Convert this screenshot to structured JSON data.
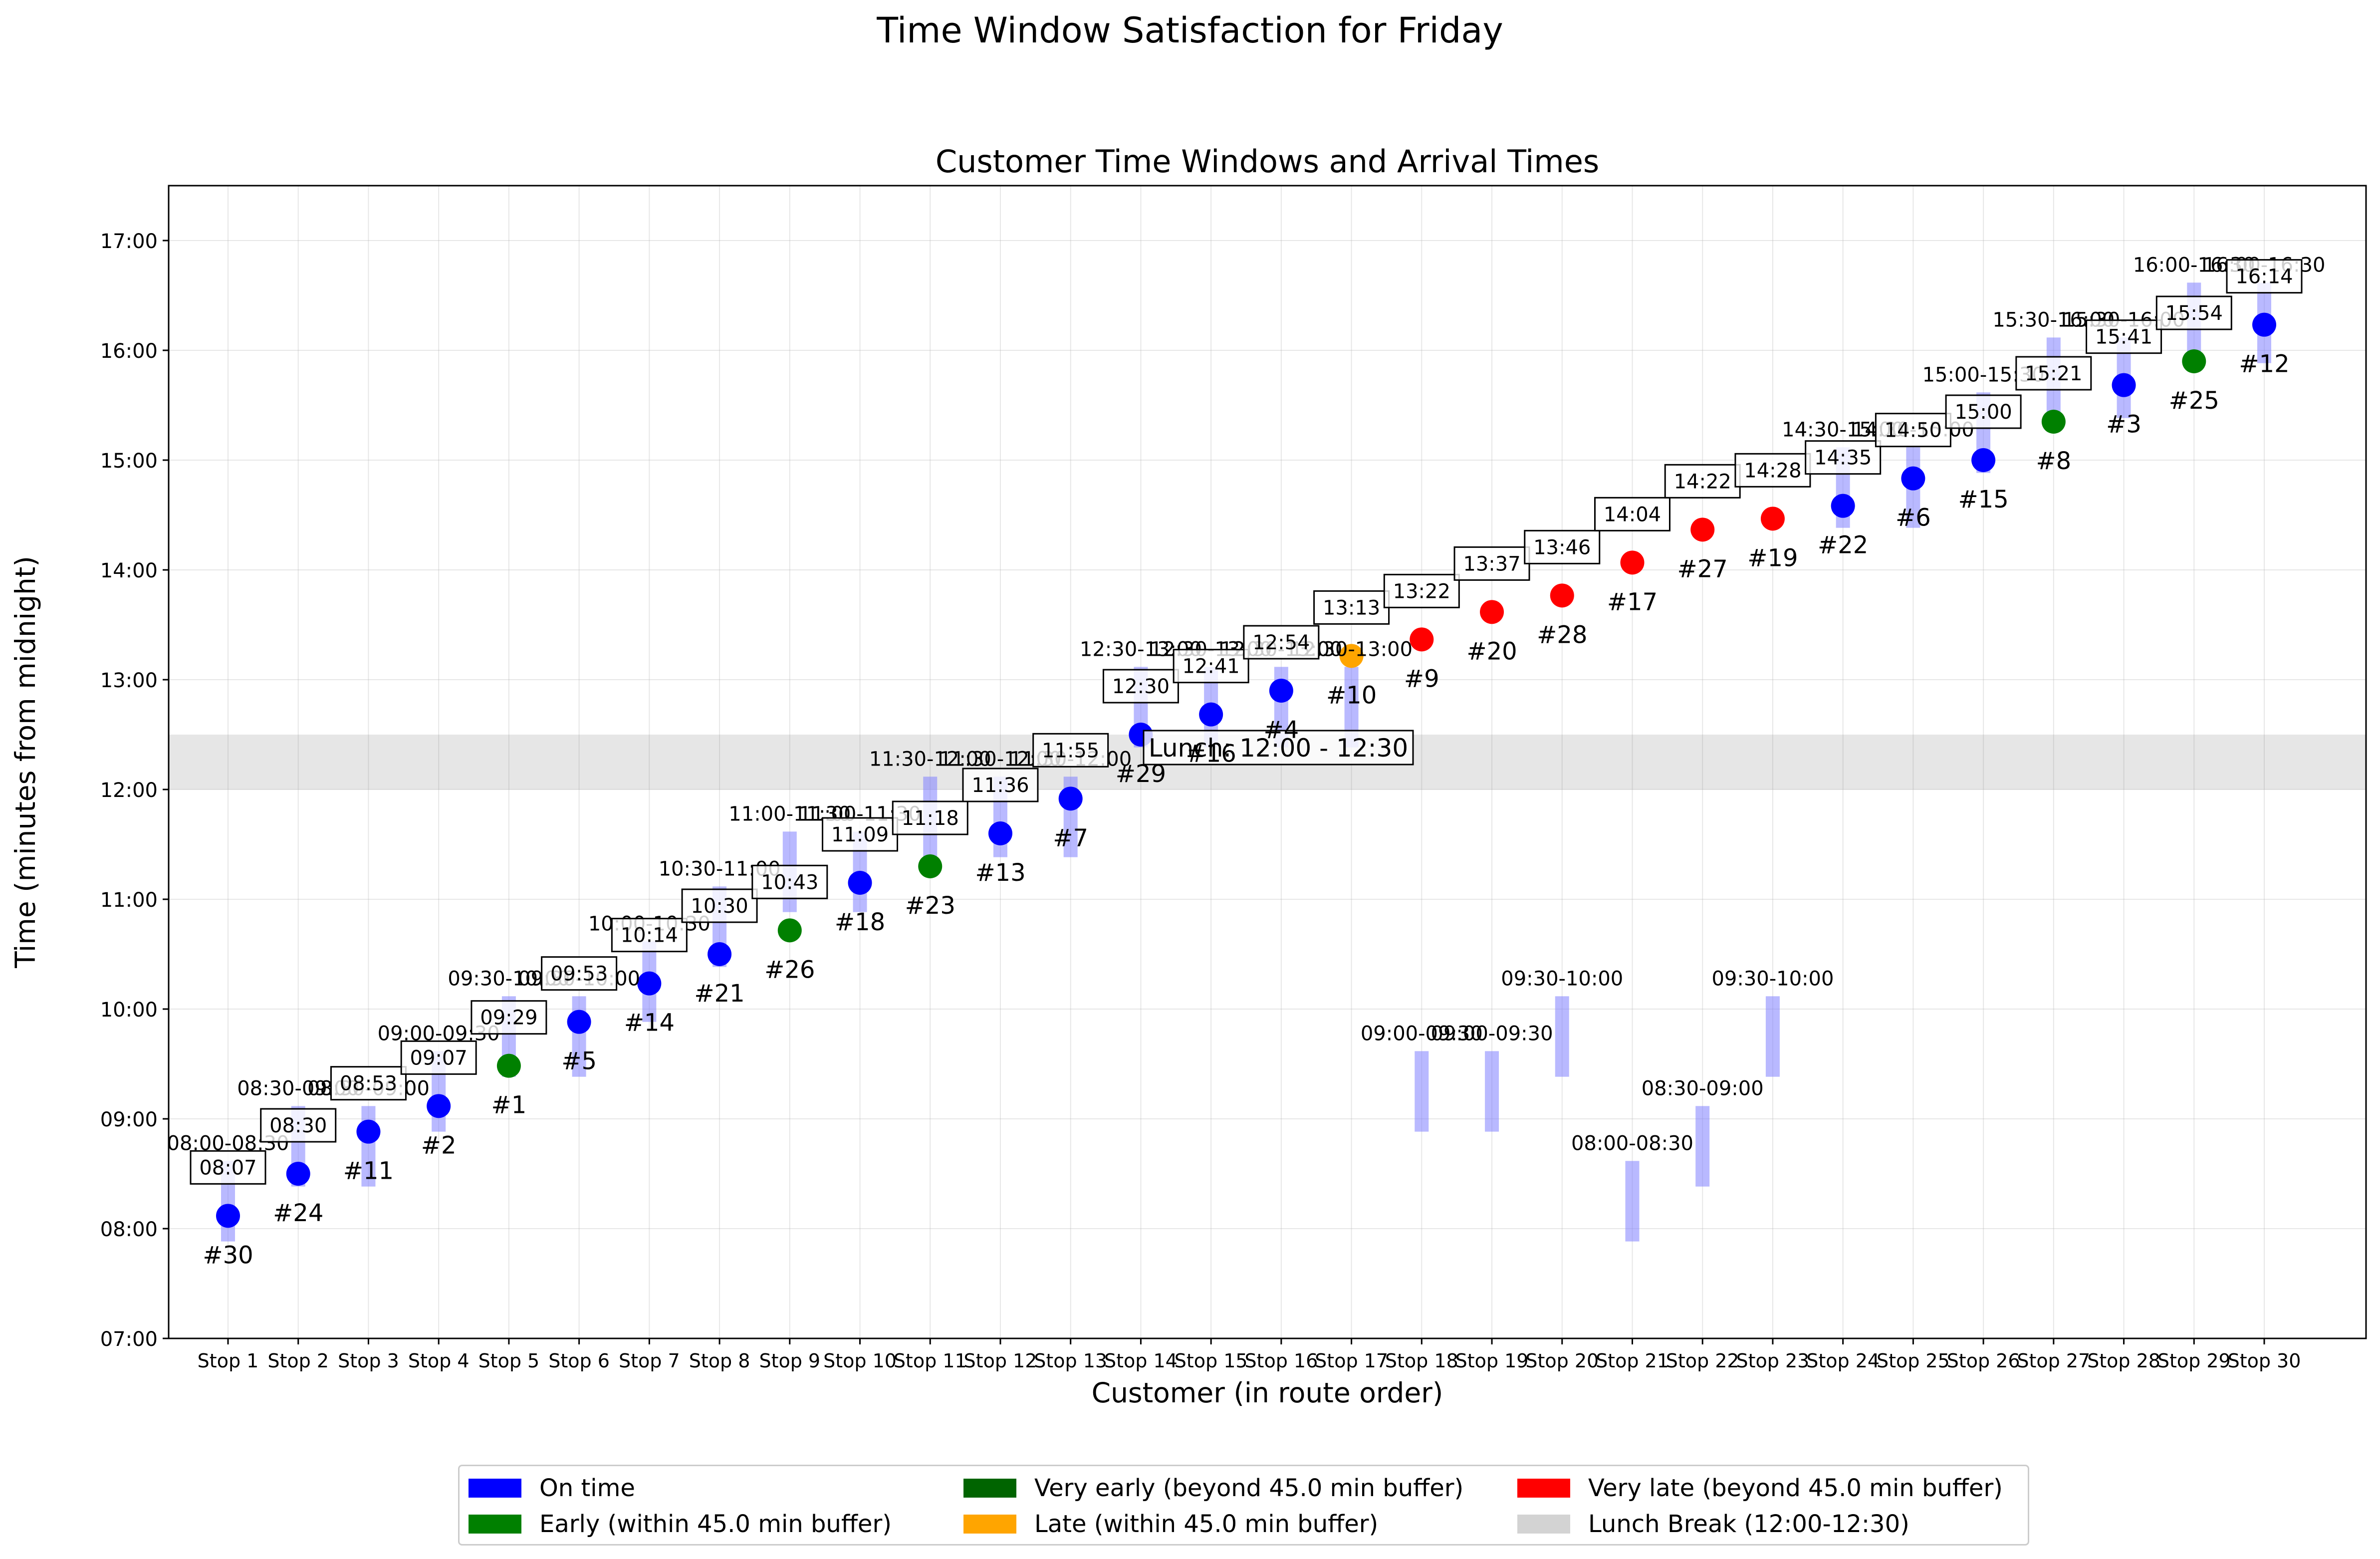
{
  "suptitle": "Time Window Satisfaction for Friday",
  "chart_data": {
    "type": "scatter",
    "title": "Customer Time Windows and Arrival Times",
    "xlabel": "Customer (in route order)",
    "ylabel": "Time (minutes from midnight)",
    "ylim": [
      "07:00",
      "17:30"
    ],
    "yticks": [
      "07:00",
      "08:00",
      "09:00",
      "10:00",
      "11:00",
      "12:00",
      "13:00",
      "14:00",
      "15:00",
      "16:00",
      "17:00"
    ],
    "grid": true,
    "lunch_break": {
      "start": "12:00",
      "end": "12:30",
      "label": "Lunch: 12:00 - 12:30"
    },
    "colors": {
      "on_time": "#0000ff",
      "early": "#008000",
      "very_early": "#006400",
      "late": "#ffa500",
      "very_late": "#ff0000",
      "lunch": "#d3d3d3",
      "window": "#8080ff"
    },
    "stops": [
      {
        "stop": "Stop 1",
        "customer": "#30",
        "window": "08:00-08:30",
        "arrival": "08:07",
        "status": "on_time"
      },
      {
        "stop": "Stop 2",
        "customer": "#24",
        "window": "08:30-09:00",
        "arrival": "08:30",
        "status": "on_time"
      },
      {
        "stop": "Stop 3",
        "customer": "#11",
        "window": "08:30-09:00",
        "arrival": "08:53",
        "status": "on_time"
      },
      {
        "stop": "Stop 4",
        "customer": "#2",
        "window": "09:00-09:30",
        "arrival": "09:07",
        "status": "on_time"
      },
      {
        "stop": "Stop 5",
        "customer": "#1",
        "window": "09:30-10:00",
        "arrival": "09:29",
        "status": "early"
      },
      {
        "stop": "Stop 6",
        "customer": "#5",
        "window": "09:30-10:00",
        "arrival": "09:53",
        "status": "on_time"
      },
      {
        "stop": "Stop 7",
        "customer": "#14",
        "window": "10:00-10:30",
        "arrival": "10:14",
        "status": "on_time"
      },
      {
        "stop": "Stop 8",
        "customer": "#21",
        "window": "10:30-11:00",
        "arrival": "10:30",
        "status": "on_time"
      },
      {
        "stop": "Stop 9",
        "customer": "#26",
        "window": "11:00-11:30",
        "arrival": "10:43",
        "status": "early"
      },
      {
        "stop": "Stop 10",
        "customer": "#18",
        "window": "11:00-11:30",
        "arrival": "11:09",
        "status": "on_time"
      },
      {
        "stop": "Stop 11",
        "customer": "#23",
        "window": "11:30-12:00",
        "arrival": "11:18",
        "status": "early"
      },
      {
        "stop": "Stop 12",
        "customer": "#13",
        "window": "11:30-12:00",
        "arrival": "11:36",
        "status": "on_time"
      },
      {
        "stop": "Stop 13",
        "customer": "#7",
        "window": "11:30-12:00",
        "arrival": "11:55",
        "status": "on_time"
      },
      {
        "stop": "Stop 14",
        "customer": "#29",
        "window": "12:30-13:00",
        "arrival": "12:30",
        "status": "on_time"
      },
      {
        "stop": "Stop 15",
        "customer": "#16",
        "window": "12:30-13:00",
        "arrival": "12:41",
        "status": "on_time"
      },
      {
        "stop": "Stop 16",
        "customer": "#4",
        "window": "12:30-13:00",
        "arrival": "12:54",
        "status": "on_time"
      },
      {
        "stop": "Stop 17",
        "customer": "#10",
        "window": "12:30-13:00",
        "arrival": "13:13",
        "status": "late"
      },
      {
        "stop": "Stop 18",
        "customer": "#9",
        "window": "09:00-09:30",
        "arrival": "13:22",
        "status": "very_late"
      },
      {
        "stop": "Stop 19",
        "customer": "#20",
        "window": "09:00-09:30",
        "arrival": "13:37",
        "status": "very_late"
      },
      {
        "stop": "Stop 20",
        "customer": "#28",
        "window": "09:30-10:00",
        "arrival": "13:46",
        "status": "very_late"
      },
      {
        "stop": "Stop 21",
        "customer": "#17",
        "window": "08:00-08:30",
        "arrival": "14:04",
        "status": "very_late"
      },
      {
        "stop": "Stop 22",
        "customer": "#27",
        "window": "08:30-09:00",
        "arrival": "14:22",
        "status": "very_late"
      },
      {
        "stop": "Stop 23",
        "customer": "#19",
        "window": "09:30-10:00",
        "arrival": "14:28",
        "status": "very_late"
      },
      {
        "stop": "Stop 24",
        "customer": "#22",
        "window": "14:30-15:00",
        "arrival": "14:35",
        "status": "on_time"
      },
      {
        "stop": "Stop 25",
        "customer": "#6",
        "window": "14:30-15:00",
        "arrival": "14:50",
        "status": "on_time"
      },
      {
        "stop": "Stop 26",
        "customer": "#15",
        "window": "15:00-15:30",
        "arrival": "15:00",
        "status": "on_time"
      },
      {
        "stop": "Stop 27",
        "customer": "#8",
        "window": "15:30-16:00",
        "arrival": "15:21",
        "status": "early"
      },
      {
        "stop": "Stop 28",
        "customer": "#3",
        "window": "15:30-16:00",
        "arrival": "15:41",
        "status": "on_time"
      },
      {
        "stop": "Stop 29",
        "customer": "#25",
        "window": "16:00-16:30",
        "arrival": "15:54",
        "status": "early"
      },
      {
        "stop": "Stop 30",
        "customer": "#12",
        "window": "16:00-16:30",
        "arrival": "16:14",
        "status": "on_time"
      }
    ],
    "legend": {
      "placement": "below",
      "items": [
        {
          "label": "On time",
          "color": "#0000ff"
        },
        {
          "label": "Early (within 45.0 min buffer)",
          "color": "#008000"
        },
        {
          "label": "Very early (beyond 45.0 min buffer)",
          "color": "#006400"
        },
        {
          "label": "Late (within 45.0 min buffer)",
          "color": "#ffa500"
        },
        {
          "label": "Very late (beyond 45.0 min buffer)",
          "color": "#ff0000"
        },
        {
          "label": "Lunch Break (12:00-12:30)",
          "color": "#d3d3d3"
        }
      ]
    }
  }
}
